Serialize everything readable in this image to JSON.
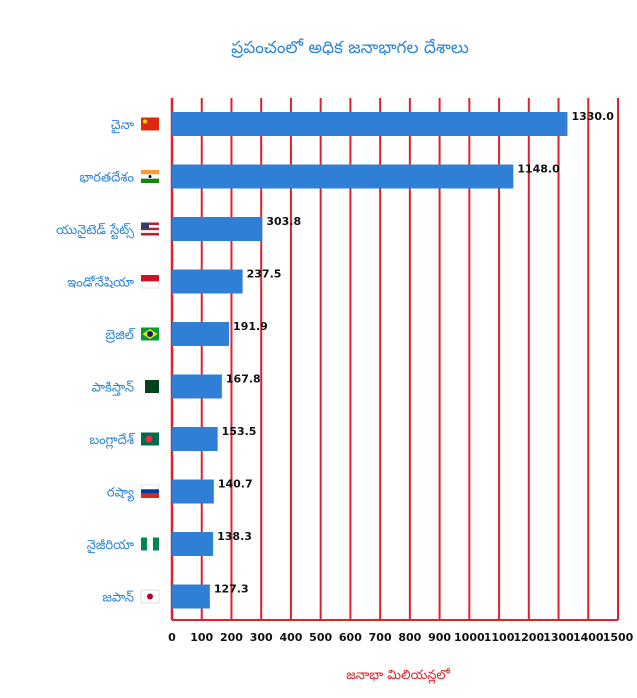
{
  "chart_data": {
    "type": "bar",
    "orientation": "horizontal",
    "title": "ప్రపంచంలో అధిక జనాభాగల దేశాలు",
    "xlabel": "జనాభా మిలియన్లలో",
    "categories": [
      "చైనా",
      "భారతదేశం",
      "యునైటెడ్ స్టేట్స్",
      "ఇండోనేషియా",
      "బ్రెజిల్",
      "పాకిస్తాన్",
      "బంగ్లాదేశ్",
      "రష్యా",
      "నైజీరియా",
      "జపాన్"
    ],
    "values": [
      1330.0,
      1148.0,
      303.8,
      237.5,
      191.9,
      167.8,
      153.5,
      140.7,
      138.3,
      127.3
    ],
    "value_labels": [
      "1330.0",
      "1148.0",
      "303.8",
      "237.5",
      "191.9",
      "167.8",
      "153.5",
      "140.7",
      "138.3",
      "127.3"
    ],
    "xlim": [
      0,
      1500
    ],
    "xticks": [
      "0",
      "100",
      "200",
      "300",
      "400",
      "500",
      "600",
      "700",
      "800",
      "900",
      "1000",
      "1100",
      "1200",
      "1300",
      "1400",
      "1500"
    ],
    "grid": true,
    "colors": {
      "bar": "#2f7fd6",
      "grid": "#e0202a",
      "category_text": "#2e86d8",
      "axis_title": "#e0202a"
    },
    "flag_icons": [
      "china-flag-icon",
      "india-flag-icon",
      "usa-flag-icon",
      "indonesia-flag-icon",
      "brazil-flag-icon",
      "pakistan-flag-icon",
      "bangladesh-flag-icon",
      "russia-flag-icon",
      "nigeria-flag-icon",
      "japan-flag-icon"
    ]
  }
}
